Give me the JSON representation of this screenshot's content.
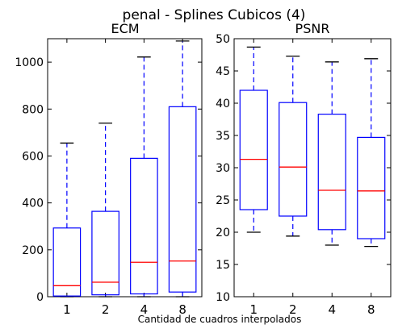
{
  "figure": {
    "suptitle": "penal - Splines Cubicos (4)",
    "xlabel": "Cantidad de cuadros interpolados"
  },
  "chart_data": [
    {
      "type": "box",
      "title": "ECM",
      "categories": [
        "1",
        "2",
        "4",
        "8"
      ],
      "ylim": [
        0,
        1100
      ],
      "yticks": [
        0,
        200,
        400,
        600,
        800,
        1000
      ],
      "ytick_labels": [
        "0",
        "200",
        "400",
        "600",
        "800",
        "1000"
      ],
      "grid": false,
      "boxes": [
        {
          "whisker_low": 0,
          "q1": 3,
          "median": 47,
          "q3": 293,
          "whisker_high": 655
        },
        {
          "whisker_low": 0,
          "q1": 8,
          "median": 62,
          "q3": 364,
          "whisker_high": 740
        },
        {
          "whisker_low": 0,
          "q1": 12,
          "median": 147,
          "q3": 590,
          "whisker_high": 1022
        },
        {
          "whisker_low": 0,
          "q1": 20,
          "median": 152,
          "q3": 810,
          "whisker_high": 1090
        }
      ],
      "colors": {
        "box": "#0000ff",
        "median": "#ff0000",
        "whisker": "#0000ff",
        "cap": "#000000"
      }
    },
    {
      "type": "box",
      "title": "PSNR",
      "categories": [
        "1",
        "2",
        "4",
        "8"
      ],
      "ylim": [
        10,
        50
      ],
      "yticks": [
        10,
        15,
        20,
        25,
        30,
        35,
        40,
        45,
        50
      ],
      "ytick_labels": [
        "10",
        "15",
        "20",
        "25",
        "30",
        "35",
        "40",
        "45",
        "50"
      ],
      "grid": false,
      "boxes": [
        {
          "whisker_low": 20.0,
          "q1": 23.5,
          "median": 31.3,
          "q3": 42.0,
          "whisker_high": 48.7
        },
        {
          "whisker_low": 19.4,
          "q1": 22.5,
          "median": 30.1,
          "q3": 40.1,
          "whisker_high": 47.3
        },
        {
          "whisker_low": 18.0,
          "q1": 20.4,
          "median": 26.5,
          "q3": 38.3,
          "whisker_high": 46.4
        },
        {
          "whisker_low": 17.8,
          "q1": 19.0,
          "median": 26.4,
          "q3": 34.7,
          "whisker_high": 46.9
        }
      ],
      "colors": {
        "box": "#0000ff",
        "median": "#ff0000",
        "whisker": "#0000ff",
        "cap": "#000000"
      }
    }
  ]
}
